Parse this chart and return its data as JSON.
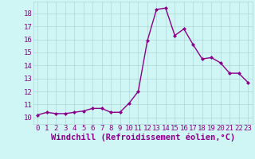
{
  "x": [
    0,
    1,
    2,
    3,
    4,
    5,
    6,
    7,
    8,
    9,
    10,
    11,
    12,
    13,
    14,
    15,
    16,
    17,
    18,
    19,
    20,
    21,
    22,
    23
  ],
  "y": [
    10.2,
    10.4,
    10.3,
    10.3,
    10.4,
    10.5,
    10.7,
    10.7,
    10.4,
    10.4,
    11.1,
    12.0,
    15.9,
    18.3,
    18.4,
    16.3,
    16.8,
    15.6,
    14.5,
    14.6,
    14.2,
    13.4,
    13.4,
    12.7
  ],
  "line_color": "#8B008B",
  "marker": "D",
  "marker_size": 2.0,
  "bg_color": "#cff5f5",
  "grid_color": "#b0d8d8",
  "xlabel": "Windchill (Refroidissement éolien,°C)",
  "xlabel_color": "#8B008B",
  "xlim": [
    -0.5,
    23.5
  ],
  "ylim": [
    9.5,
    18.9
  ],
  "yticks": [
    10,
    11,
    12,
    13,
    14,
    15,
    16,
    17,
    18
  ],
  "xticks": [
    0,
    1,
    2,
    3,
    4,
    5,
    6,
    7,
    8,
    9,
    10,
    11,
    12,
    13,
    14,
    15,
    16,
    17,
    18,
    19,
    20,
    21,
    22,
    23
  ],
  "tick_color": "#8B008B",
  "tick_fontsize": 6.5,
  "xlabel_fontsize": 7.5,
  "line_width": 1.0
}
